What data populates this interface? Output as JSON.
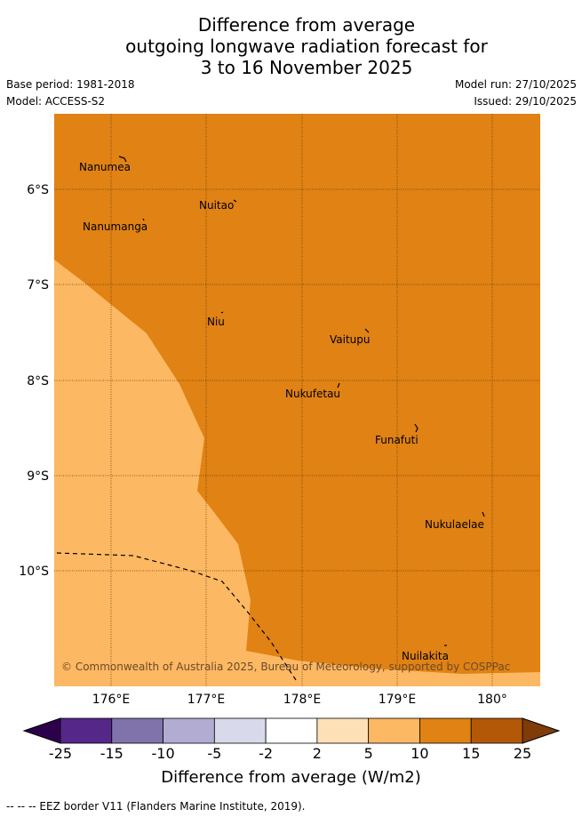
{
  "title": {
    "line1": "Difference from average",
    "line2": "outgoing longwave radiation forecast for",
    "line3": "3 to 16 November 2025"
  },
  "meta": {
    "base_period": "Base period: 1981-2018",
    "model": "Model: ACCESS-S2",
    "model_run": "Model run: 27/10/2025",
    "issued": "Issued: 29/10/2025"
  },
  "map": {
    "lat_ticks": [
      "6°S",
      "7°S",
      "8°S",
      "9°S",
      "10°S"
    ],
    "lon_ticks": [
      "176°E",
      "177°E",
      "178°E",
      "179°E",
      "180°"
    ],
    "places": [
      "Nanumea",
      "Nuitao",
      "Nanumanga",
      "Niu",
      "Vaitupu",
      "Nukufetau",
      "Funafuti",
      "Nukulaelae",
      "Nuilakita"
    ],
    "copyright": "© Commonwealth of Australia 2025, Bureau of Meteorology, supported by COSPPac",
    "colors": {
      "band_10_15": "#e08214",
      "band_5_10": "#fdb863"
    }
  },
  "colorbar": {
    "ticks": [
      "-25",
      "-15",
      "-10",
      "-5",
      "-2",
      "2",
      "5",
      "10",
      "15",
      "25"
    ],
    "colors": [
      "#542788",
      "#8073ac",
      "#b2abd2",
      "#d8daeb",
      "#ffffff",
      "#fee0b6",
      "#fdb863",
      "#e08214",
      "#b35806"
    ],
    "under_color": "#2d004b",
    "over_color": "#7f3b08",
    "label": "Difference from average (W/m2)"
  },
  "footer": "-- -- -- EEZ border V11 (Flanders Marine Institute, 2019)."
}
